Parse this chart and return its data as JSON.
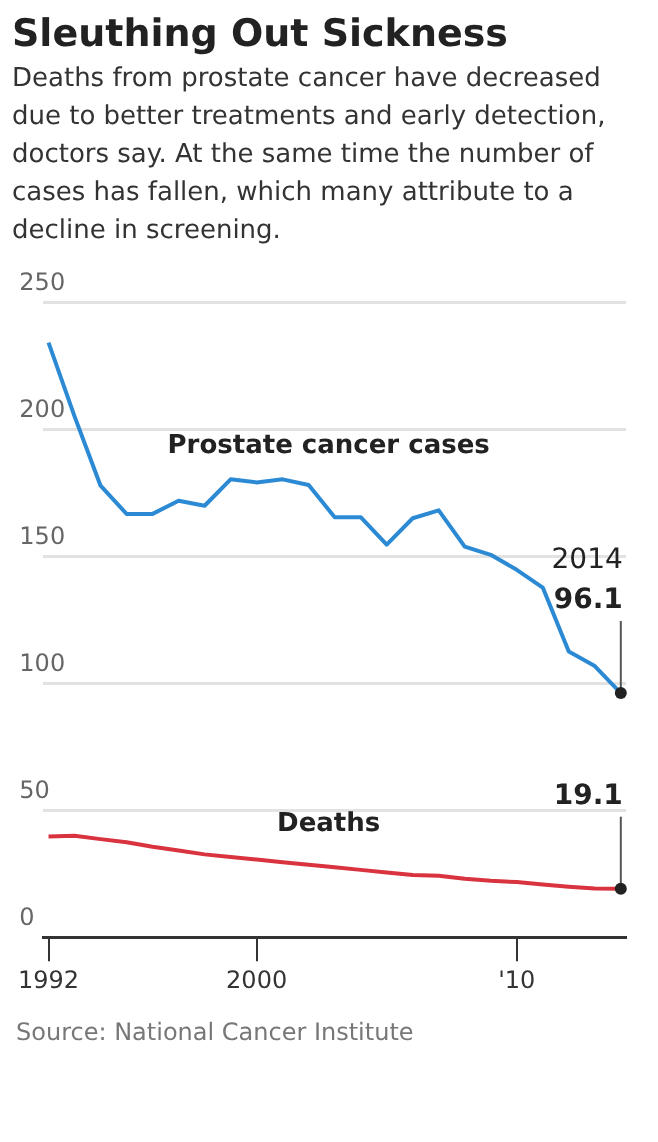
{
  "chart_data": {
    "type": "line",
    "title": "Sleuthing Out Sickness",
    "subtitle": "Deaths from prostate cancer have decreased due to better treatments and early detection, doctors say. At the same time the number of cases has fallen, which many attribute to a decline in screening.",
    "x": [
      1992,
      1993,
      1994,
      1995,
      1996,
      1997,
      1998,
      1999,
      2000,
      2001,
      2002,
      2003,
      2004,
      2005,
      2006,
      2007,
      2008,
      2009,
      2010,
      2011,
      2012,
      2013,
      2014
    ],
    "series": [
      {
        "name": "Prostate cancer cases",
        "color": "#2b8ad3",
        "values": [
          234,
          205,
          177.7,
          166.6,
          166.6,
          171.8,
          169.8,
          180.2,
          179,
          180.2,
          178,
          165.3,
          165.3,
          154.5,
          164.9,
          168,
          153.7,
          150.5,
          144.6,
          137.6,
          112.4,
          106.7,
          96.1
        ]
      },
      {
        "name": "Deaths",
        "color": "#d9333f",
        "values": [
          39.6,
          39.9,
          38.6,
          37.4,
          35.6,
          34.1,
          32.6,
          31.6,
          30.6,
          29.5,
          28.5,
          27.5,
          26.5,
          25.5,
          24.5,
          24.2,
          23,
          22.2,
          21.7,
          20.7,
          19.9,
          19.2,
          19.1
        ]
      }
    ],
    "xlim": [
      1991.8,
      2014.2
    ],
    "xticks": [
      {
        "value": 1992,
        "label": "1992"
      },
      {
        "value": 2000,
        "label": "2000"
      },
      {
        "value": 2010,
        "label": "'10"
      }
    ],
    "ylim": [
      0,
      250
    ],
    "yticks": [
      0,
      50,
      100,
      150,
      200,
      250
    ],
    "grid": "y",
    "marker": "none",
    "line_style": "solid",
    "legend": false,
    "annotations": [
      "2014",
      {
        "text": "96.1",
        "x": 2014,
        "y": 96.1
      },
      {
        "text": "19.1",
        "x": 2014,
        "y": 19.1
      },
      "Source: National Cancer Institute"
    ]
  }
}
